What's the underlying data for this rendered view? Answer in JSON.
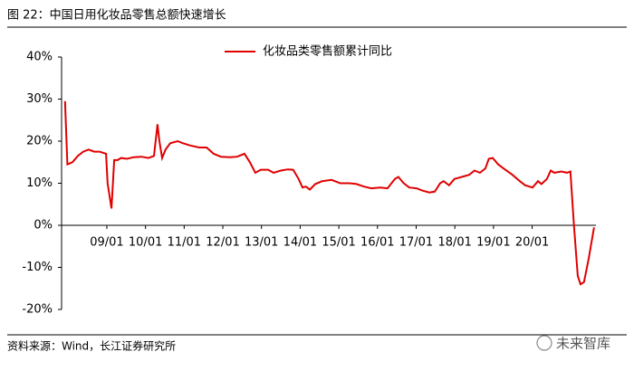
{
  "chart_data": {
    "type": "line",
    "title": "图 22：中国日用化妆品零售总额快速增长",
    "source": "资料来源：Wind，长江证券研究所",
    "watermark": "未来智库",
    "legend": "top",
    "grid": false,
    "x": [
      2007.92,
      2007.98,
      2008.11,
      2008.25,
      2008.39,
      2008.53,
      2008.67,
      2008.81,
      2008.98,
      2009.02,
      2009.12,
      2009.19,
      2009.28,
      2009.37,
      2009.52,
      2009.7,
      2009.89,
      2010.08,
      2010.22,
      2010.31,
      2010.36,
      2010.43,
      2010.52,
      2010.64,
      2010.83,
      2010.97,
      2011.15,
      2011.39,
      2011.58,
      2011.76,
      2011.95,
      2012.19,
      2012.37,
      2012.56,
      2012.7,
      2012.84,
      2012.98,
      2013.17,
      2013.31,
      2013.5,
      2013.68,
      2013.82,
      2013.96,
      2014.06,
      2014.15,
      2014.25,
      2014.39,
      2014.57,
      2014.81,
      2015.04,
      2015.28,
      2015.46,
      2015.65,
      2015.84,
      2016.07,
      2016.26,
      2016.45,
      2016.54,
      2016.68,
      2016.82,
      2017.01,
      2017.15,
      2017.34,
      2017.48,
      2017.62,
      2017.71,
      2017.85,
      2017.99,
      2018.18,
      2018.37,
      2018.51,
      2018.65,
      2018.79,
      2018.88,
      2018.98,
      2019.12,
      2019.26,
      2019.49,
      2019.68,
      2019.82,
      2020.01,
      2020.15,
      2020.24,
      2020.38,
      2020.48,
      2020.57,
      2020.76,
      2020.9,
      2020.99,
      2021.08,
      2021.18,
      2021.25,
      2021.34,
      2021.46,
      2021.6
    ],
    "series": [
      {
        "name": "化妆品类零售额累计同比",
        "color": "#e00000",
        "values": [
          29.5,
          14.5,
          15,
          16.5,
          17.5,
          18,
          17.5,
          17.5,
          17,
          10,
          4,
          15.5,
          15.5,
          16,
          15.8,
          16.2,
          16.3,
          16,
          16.5,
          24,
          20,
          16,
          18,
          19.5,
          20,
          19.5,
          19,
          18.5,
          18.5,
          17,
          16.3,
          16.2,
          16.3,
          17,
          15,
          12.5,
          13.2,
          13.2,
          12.5,
          13,
          13.3,
          13.2,
          11,
          9,
          9.2,
          8.5,
          9.8,
          10.5,
          10.8,
          10,
          10,
          9.8,
          9.2,
          8.8,
          9,
          8.8,
          11,
          11.5,
          10,
          9,
          8.8,
          8.3,
          7.8,
          8,
          10,
          10.5,
          9.5,
          11,
          11.5,
          12,
          13,
          12.5,
          13.5,
          15.8,
          16,
          14.5,
          13.5,
          12,
          10.5,
          9.5,
          9,
          10.5,
          9.8,
          11,
          13,
          12.5,
          12.8,
          12.5,
          12.8,
          0,
          -12,
          -14,
          -13.5,
          -8,
          -0.5
        ]
      }
    ],
    "xlim": [
      2007.83,
      2021.65
    ],
    "xticks": [
      {
        "value": 2009,
        "label": "09/01"
      },
      {
        "value": 2010,
        "label": "10/01"
      },
      {
        "value": 2011,
        "label": "11/01"
      },
      {
        "value": 2012,
        "label": "12/01"
      },
      {
        "value": 2013,
        "label": "13/01"
      },
      {
        "value": 2014,
        "label": "14/01"
      },
      {
        "value": 2015,
        "label": "15/01"
      },
      {
        "value": 2016,
        "label": "16/01"
      },
      {
        "value": 2017,
        "label": "17/01"
      },
      {
        "value": 2018,
        "label": "18/01"
      },
      {
        "value": 2019,
        "label": "19/01"
      },
      {
        "value": 2020,
        "label": "20/01"
      }
    ],
    "ylim": [
      -20,
      40
    ],
    "yticks": [
      {
        "value": 40,
        "label": "40%"
      },
      {
        "value": 30,
        "label": "30%"
      },
      {
        "value": 20,
        "label": "20%"
      },
      {
        "value": 10,
        "label": "10%"
      },
      {
        "value": 0,
        "label": "0%"
      },
      {
        "value": -10,
        "label": "-10%"
      },
      {
        "value": -20,
        "label": "-20%"
      }
    ]
  }
}
